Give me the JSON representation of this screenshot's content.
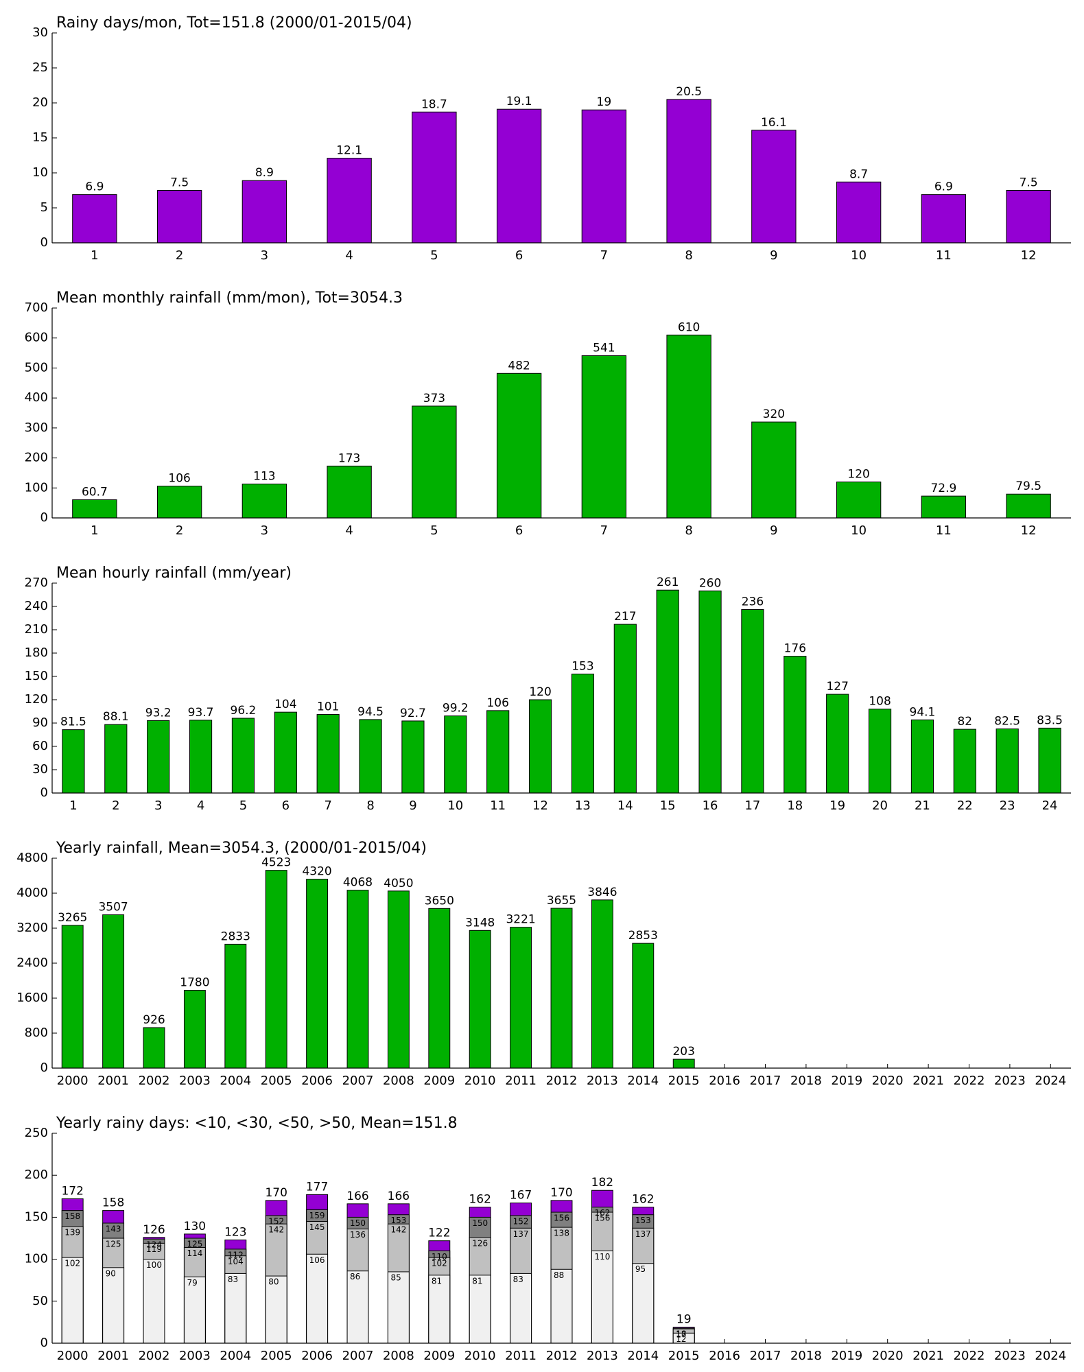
{
  "chart_data": [
    {
      "type": "bar",
      "title": "Rainy days/mon, Tot=151.8 (2000/01-2015/04)",
      "categories": [
        "1",
        "2",
        "3",
        "4",
        "5",
        "6",
        "7",
        "8",
        "9",
        "10",
        "11",
        "12"
      ],
      "values": [
        6.9,
        7.5,
        8.9,
        12.1,
        18.7,
        19.1,
        19,
        20.5,
        16.1,
        8.7,
        6.9,
        7.5
      ],
      "color": "#9400d3",
      "ylim": [
        0,
        30
      ],
      "yticks": [
        0,
        5,
        10,
        15,
        20,
        25,
        30
      ]
    },
    {
      "type": "bar",
      "title": "Mean monthly rainfall (mm/mon), Tot=3054.3",
      "categories": [
        "1",
        "2",
        "3",
        "4",
        "5",
        "6",
        "7",
        "8",
        "9",
        "10",
        "11",
        "12"
      ],
      "values": [
        60.7,
        106,
        113,
        173,
        373,
        482,
        541,
        610,
        320,
        120,
        72.9,
        79.5
      ],
      "color": "#00b000",
      "ylim": [
        0,
        700
      ],
      "yticks": [
        0,
        100,
        200,
        300,
        400,
        500,
        600,
        700
      ]
    },
    {
      "type": "bar",
      "title": "Mean hourly rainfall (mm/year)",
      "categories": [
        "1",
        "2",
        "3",
        "4",
        "5",
        "6",
        "7",
        "8",
        "9",
        "10",
        "11",
        "12",
        "13",
        "14",
        "15",
        "16",
        "17",
        "18",
        "19",
        "20",
        "21",
        "22",
        "23",
        "24"
      ],
      "values": [
        81.5,
        88.1,
        93.2,
        93.7,
        96.2,
        104,
        101,
        94.5,
        92.7,
        99.2,
        106,
        120,
        153,
        217,
        261,
        260,
        236,
        176,
        127,
        108,
        94.1,
        82,
        82.5,
        83.5
      ],
      "color": "#00b000",
      "ylim": [
        0,
        270
      ],
      "yticks": [
        0,
        30,
        60,
        90,
        120,
        150,
        180,
        210,
        240,
        270
      ]
    },
    {
      "type": "bar",
      "title": "Yearly rainfall, Mean=3054.3, (2000/01-2015/04)",
      "categories": [
        "2000",
        "2001",
        "2002",
        "2003",
        "2004",
        "2005",
        "2006",
        "2007",
        "2008",
        "2009",
        "2010",
        "2011",
        "2012",
        "2013",
        "2014",
        "2015",
        "2016",
        "2017",
        "2018",
        "2019",
        "2020",
        "2021",
        "2022",
        "2023",
        "2024"
      ],
      "values": [
        3265,
        3507,
        926,
        1780,
        2833,
        4523,
        4320,
        4068,
        4050,
        3650,
        3148,
        3221,
        3655,
        3846,
        2853,
        203,
        null,
        null,
        null,
        null,
        null,
        null,
        null,
        null,
        null
      ],
      "color": "#00b000",
      "ylim": [
        0,
        4800
      ],
      "yticks": [
        0,
        800,
        1600,
        2400,
        3200,
        4000,
        4800
      ]
    },
    {
      "type": "bar",
      "overlap": true,
      "title": "Yearly rainy days: <10, <30, <50, >50, Mean=151.8",
      "categories": [
        "2000",
        "2001",
        "2002",
        "2003",
        "2004",
        "2005",
        "2006",
        "2007",
        "2008",
        "2009",
        "2010",
        "2011",
        "2012",
        "2013",
        "2014",
        "2015",
        "2016",
        "2017",
        "2018",
        "2019",
        "2020",
        "2021",
        "2022",
        "2023",
        "2024"
      ],
      "series": [
        {
          "color": "#f0f0f0",
          "values": [
            102,
            90,
            100,
            79,
            83,
            80,
            106,
            86,
            85,
            81,
            81,
            83,
            88,
            110,
            95,
            12,
            null,
            null,
            null,
            null,
            null,
            null,
            null,
            null,
            null
          ]
        },
        {
          "color": "#c0c0c0",
          "values": [
            139,
            125,
            119,
            114,
            104,
            142,
            145,
            136,
            142,
            102,
            126,
            137,
            138,
            156,
            137,
            17,
            null,
            null,
            null,
            null,
            null,
            null,
            null,
            null,
            null
          ]
        },
        {
          "color": "#808080",
          "values": [
            158,
            143,
            124,
            125,
            112,
            152,
            159,
            150,
            153,
            110,
            150,
            152,
            156,
            162,
            153,
            18,
            null,
            null,
            null,
            null,
            null,
            null,
            null,
            null,
            null
          ]
        },
        {
          "color": "#9400d3",
          "values": [
            172,
            158,
            126,
            130,
            123,
            170,
            177,
            166,
            166,
            122,
            162,
            167,
            170,
            182,
            162,
            19,
            null,
            null,
            null,
            null,
            null,
            null,
            null,
            null,
            null
          ]
        }
      ],
      "ylim": [
        0,
        250
      ],
      "yticks": [
        0,
        50,
        100,
        150,
        200,
        250
      ]
    }
  ]
}
